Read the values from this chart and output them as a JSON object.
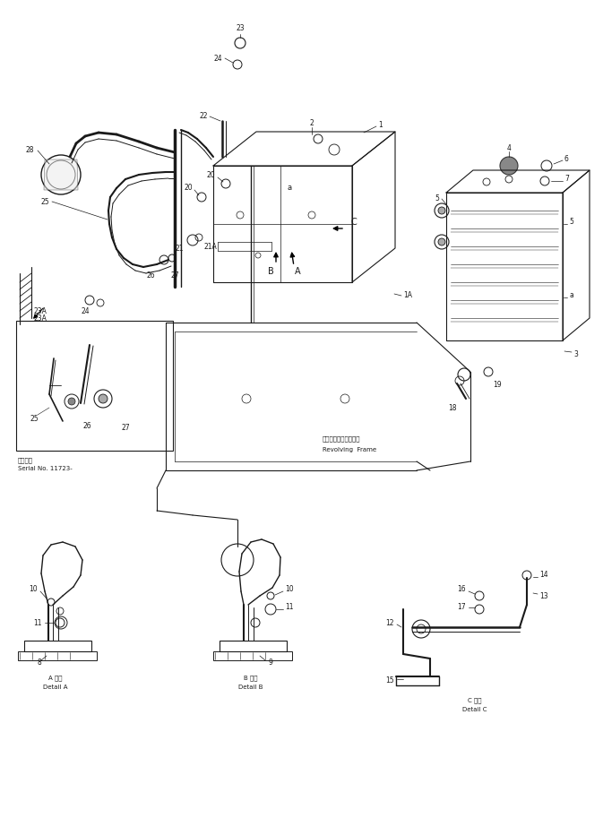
{
  "bg_color": "#ffffff",
  "line_color": "#1a1a1a",
  "fig_width": 6.73,
  "fig_height": 9.13,
  "dpi": 100,
  "annotations": {
    "revolving_frame_jp": "レボルビングフレーム",
    "revolving_frame_en": "Revolving  Frame",
    "serial_jp": "適用号機",
    "serial_no": "Serial No. 11723-",
    "detail_a_jp": "A 詳細",
    "detail_a_en": "Detail A",
    "detail_b_jp": "B 詳細",
    "detail_b_en": "Detail B",
    "detail_c_jp": "C 詳細",
    "detail_c_en": "Detail C"
  }
}
